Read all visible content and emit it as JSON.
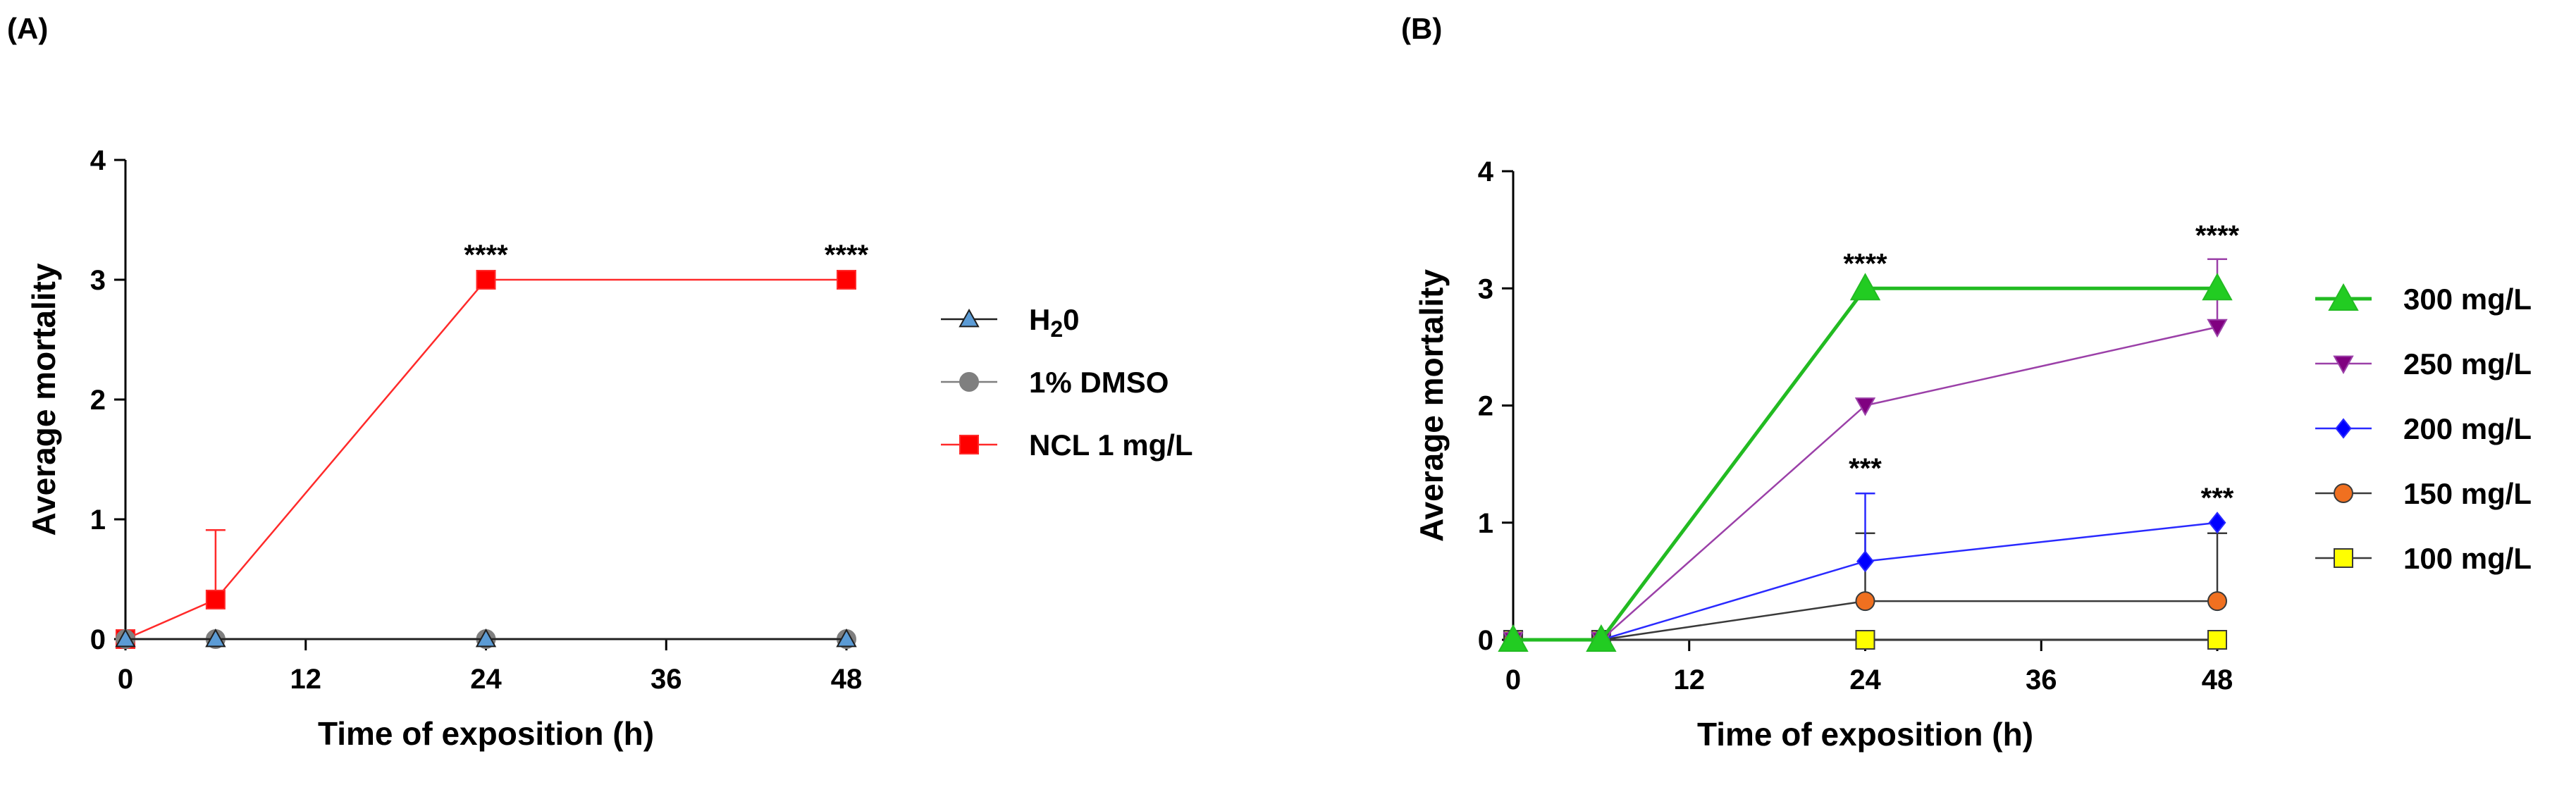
{
  "chart_data": [
    {
      "type": "line",
      "panel_label": "(A)",
      "xlabel": "Time of exposition (h)",
      "ylabel": "Average mortality",
      "x_ticks": [
        0,
        12,
        24,
        36,
        48
      ],
      "y_ticks": [
        0,
        1,
        2,
        3,
        4
      ],
      "xlim": [
        0,
        48
      ],
      "ylim": [
        0,
        4
      ],
      "series": [
        {
          "name": "H₂0",
          "legend_label": "H",
          "legend_sub": "2",
          "legend_suffix": "0",
          "marker": "triangle-up",
          "color": "#1f1f1f",
          "fill": "#5b9bd5",
          "x": [
            0,
            6,
            24,
            48
          ],
          "y": [
            0,
            0,
            0,
            0
          ],
          "err": [
            0,
            0,
            0,
            0
          ]
        },
        {
          "name": "1% DMSO",
          "legend_label": "1% DMSO",
          "marker": "circle",
          "color": "#7f7f7f",
          "fill": "#7f7f7f",
          "x": [
            0,
            6,
            24,
            48
          ],
          "y": [
            0,
            0,
            0,
            0
          ],
          "err": [
            0,
            0,
            0,
            0
          ]
        },
        {
          "name": "NCL 1 mg/L",
          "legend_label": "NCL 1 mg/L",
          "marker": "square",
          "color": "#ff2a2a",
          "fill": "#ff0000",
          "x": [
            0,
            6,
            24,
            48
          ],
          "y": [
            0,
            0.33,
            3,
            3
          ],
          "err": [
            0,
            0.58,
            0,
            0
          ]
        }
      ],
      "annotations": [
        {
          "text": "****",
          "x": 24,
          "y": 3
        },
        {
          "text": "****",
          "x": 48,
          "y": 3
        }
      ]
    },
    {
      "type": "line",
      "panel_label": "(B)",
      "xlabel": "Time of exposition (h)",
      "ylabel": "Average mortality",
      "x_ticks": [
        0,
        12,
        24,
        36,
        48
      ],
      "y_ticks": [
        0,
        1,
        2,
        3,
        4
      ],
      "xlim": [
        0,
        48
      ],
      "ylim": [
        0,
        4
      ],
      "series": [
        {
          "name": "300 mg/L",
          "legend_label": "300 mg/L",
          "marker": "triangle-up-large",
          "color": "#22bb22",
          "fill": "#22cc22",
          "x": [
            0,
            6,
            24,
            48
          ],
          "y": [
            0,
            0,
            3,
            3
          ],
          "err": [
            0,
            0,
            0,
            0
          ]
        },
        {
          "name": "250 mg/L",
          "legend_label": "250 mg/L",
          "marker": "triangle-down",
          "color": "#9b40a8",
          "fill": "#800080",
          "x": [
            0,
            6,
            24,
            48
          ],
          "y": [
            0,
            0,
            2,
            2.67
          ],
          "err": [
            0,
            0,
            0,
            0.58
          ]
        },
        {
          "name": "200 mg/L",
          "legend_label": "200 mg/L",
          "marker": "diamond",
          "color": "#2a2aff",
          "fill": "#0000ff",
          "x": [
            0,
            6,
            24,
            48
          ],
          "y": [
            0,
            0,
            0.67,
            1
          ],
          "err": [
            0,
            0,
            0.58,
            0
          ]
        },
        {
          "name": "150 mg/L",
          "legend_label": "150 mg/L",
          "marker": "circle",
          "color": "#3a3a3a",
          "fill": "#f07020",
          "x": [
            0,
            6,
            24,
            48
          ],
          "y": [
            0,
            0,
            0.33,
            0.33
          ],
          "err": [
            0,
            0,
            0.58,
            0.58
          ]
        },
        {
          "name": "100 mg/L",
          "legend_label": "100 mg/L",
          "marker": "square",
          "color": "#3a3a3a",
          "fill": "#ffff00",
          "x": [
            0,
            6,
            24,
            48
          ],
          "y": [
            0,
            0,
            0,
            0
          ],
          "err": [
            0,
            0,
            0,
            0
          ]
        }
      ],
      "annotations": [
        {
          "text": "****",
          "x": 24,
          "y": 3
        },
        {
          "text": "****",
          "x": 48,
          "y": 3.24
        },
        {
          "text": "***",
          "x": 24,
          "y": 1.25
        },
        {
          "text": "***",
          "x": 48,
          "y": 1
        }
      ]
    }
  ]
}
